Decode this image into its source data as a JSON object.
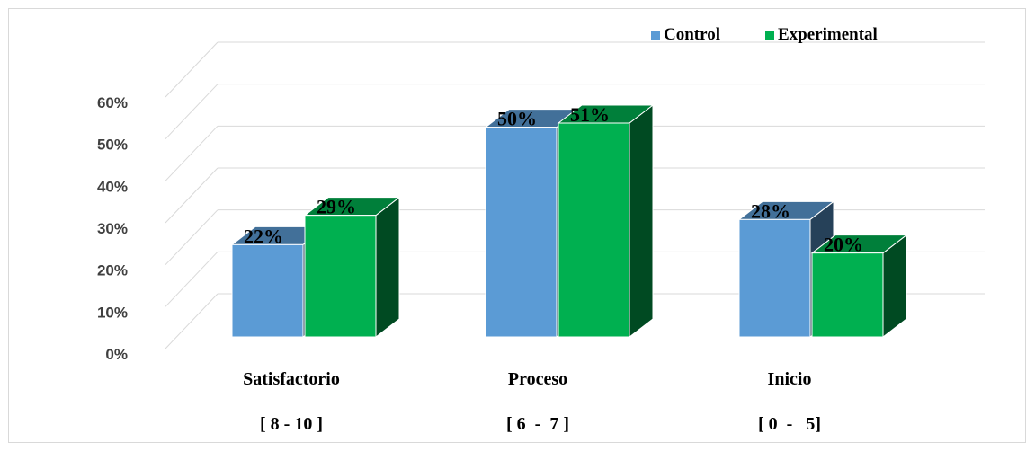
{
  "chart_data": {
    "type": "bar",
    "categories": [
      "Satisfactorio",
      "Proceso",
      "Inicio"
    ],
    "category_ranges": [
      "[ 8 - 10 ]",
      "[ 6  -  7 ]",
      "[ 0  -   5]"
    ],
    "series": [
      {
        "name": "Control",
        "values": [
          22,
          50,
          28
        ],
        "labels": [
          "22%",
          "50%",
          "28%"
        ],
        "color": "#5b9bd5"
      },
      {
        "name": "Experimental",
        "values": [
          29,
          51,
          20
        ],
        "labels": [
          "29%",
          "51%",
          "20%"
        ],
        "color": "#00b050"
      }
    ],
    "ylim": [
      0,
      60
    ],
    "yticks": [
      "0%",
      "10%",
      "20%",
      "30%",
      "40%",
      "50%",
      "60%"
    ],
    "grid": true,
    "legend_position": "top-right",
    "style": "3d-clustered-column"
  }
}
